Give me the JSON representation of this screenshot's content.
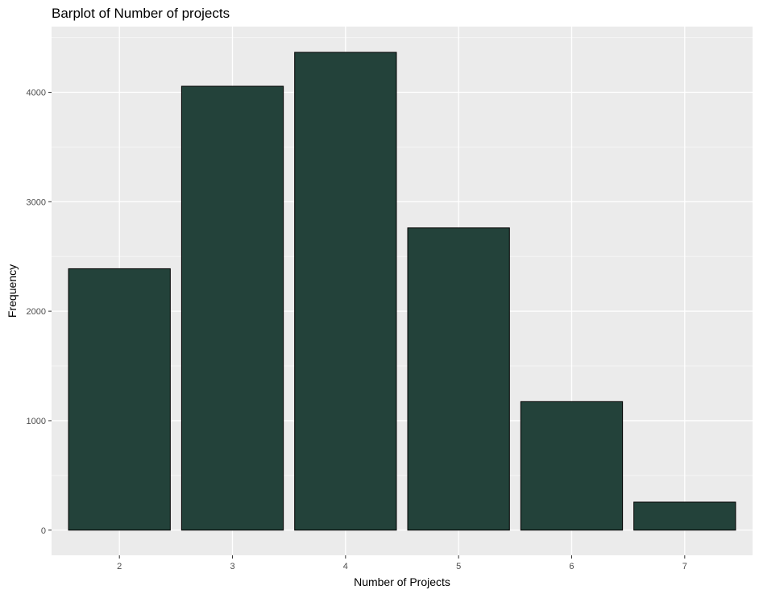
{
  "chart_data": {
    "type": "bar",
    "title": "Barplot of Number of projects",
    "xlabel": "Number of Projects",
    "ylabel": "Frequency",
    "categories": [
      "2",
      "3",
      "4",
      "5",
      "6",
      "7"
    ],
    "values": [
      2388,
      4055,
      4365,
      2761,
      1174,
      256
    ],
    "ylim": [
      -230,
      4600
    ],
    "yticks": [
      "0",
      "1000",
      "2000",
      "3000",
      "4000"
    ],
    "grid": true,
    "legend": "none",
    "colors": {
      "bar_fill": "#23423a",
      "bar_stroke": "#000000",
      "panel_bg": "#ebebeb",
      "grid_major": "#ffffff",
      "grid_minor": "#f5f5f5"
    }
  }
}
